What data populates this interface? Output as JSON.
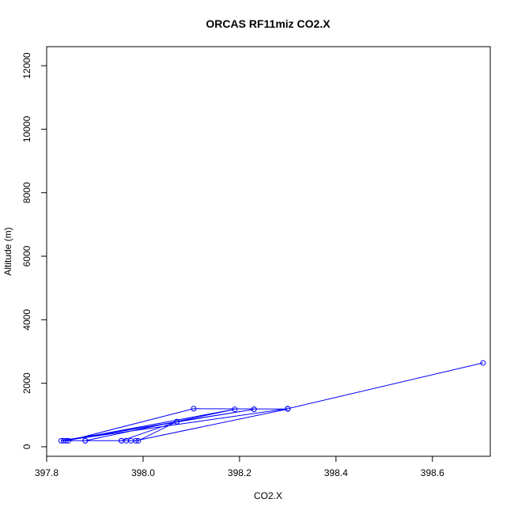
{
  "chart_data": {
    "type": "line",
    "title": "ORCAS RF11miz CO2.X",
    "xlabel": "CO2.X",
    "ylabel": "Altitude (m)",
    "xlim": [
      397.8,
      398.72
    ],
    "ylim": [
      -300,
      12600
    ],
    "x_ticks": [
      397.8,
      398.0,
      398.2,
      398.4,
      398.6
    ],
    "x_tick_labels": [
      "397.8",
      "398.0",
      "398.2",
      "398.4",
      "398.6"
    ],
    "y_ticks": [
      0,
      2000,
      4000,
      6000,
      8000,
      10000,
      12000
    ],
    "y_tick_labels": [
      "0",
      "2000",
      "4000",
      "6000",
      "8000",
      "10000",
      "12000"
    ],
    "grid": false,
    "series": [
      {
        "color": "#0000ff",
        "marker": "open-circle",
        "points": [
          {
            "x": 398.705,
            "y": 2640
          },
          {
            "x": 398.3,
            "y": 1200
          },
          {
            "x": 397.835,
            "y": 190
          },
          {
            "x": 398.23,
            "y": 1180
          },
          {
            "x": 397.83,
            "y": 190
          },
          {
            "x": 397.88,
            "y": 190
          },
          {
            "x": 398.19,
            "y": 1180
          },
          {
            "x": 397.84,
            "y": 190
          },
          {
            "x": 398.07,
            "y": 790
          },
          {
            "x": 397.955,
            "y": 190
          },
          {
            "x": 397.965,
            "y": 190
          },
          {
            "x": 397.975,
            "y": 190
          },
          {
            "x": 397.985,
            "y": 190
          },
          {
            "x": 398.3,
            "y": 1190
          },
          {
            "x": 398.105,
            "y": 1200
          },
          {
            "x": 397.845,
            "y": 190
          },
          {
            "x": 397.88,
            "y": 190
          },
          {
            "x": 397.955,
            "y": 190
          },
          {
            "x": 397.99,
            "y": 190
          },
          {
            "x": 398.07,
            "y": 790
          },
          {
            "x": 398.23,
            "y": 1180
          }
        ]
      }
    ]
  }
}
